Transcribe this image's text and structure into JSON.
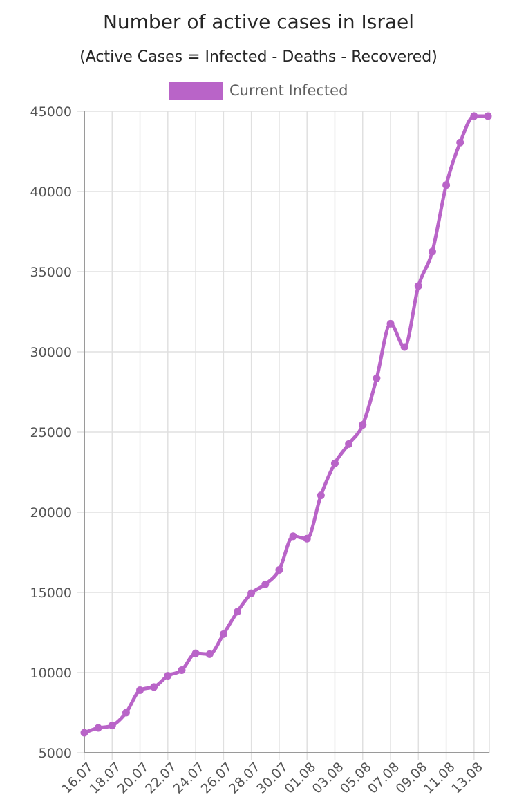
{
  "chart_data": {
    "type": "line",
    "title": "Number of active cases in Israel",
    "subtitle": "(Active Cases = Infected - Deaths - Recovered)",
    "xlabel": "",
    "ylabel": "",
    "ylim": [
      5000,
      45000
    ],
    "y_ticks": [
      5000,
      10000,
      15000,
      20000,
      25000,
      30000,
      35000,
      40000,
      45000
    ],
    "x_tick_labels": [
      "16.07",
      "18.07",
      "20.07",
      "22.07",
      "24.07",
      "26.07",
      "28.07",
      "30.07",
      "01.08",
      "03.08",
      "05.08",
      "07.08",
      "09.08",
      "11.08",
      "13.08"
    ],
    "grid": true,
    "legend": "top-center",
    "color": "#b964c8",
    "series": [
      {
        "name": "Current Infected",
        "values": [
          6250,
          6550,
          6700,
          7500,
          8900,
          9100,
          9800,
          10150,
          11200,
          11150,
          12400,
          13800,
          14950,
          15500,
          16400,
          18500,
          18350,
          21050,
          23050,
          24250,
          25450,
          28350,
          31750,
          30300,
          34100,
          36250,
          40400,
          43050,
          44700,
          44700
        ]
      }
    ]
  }
}
